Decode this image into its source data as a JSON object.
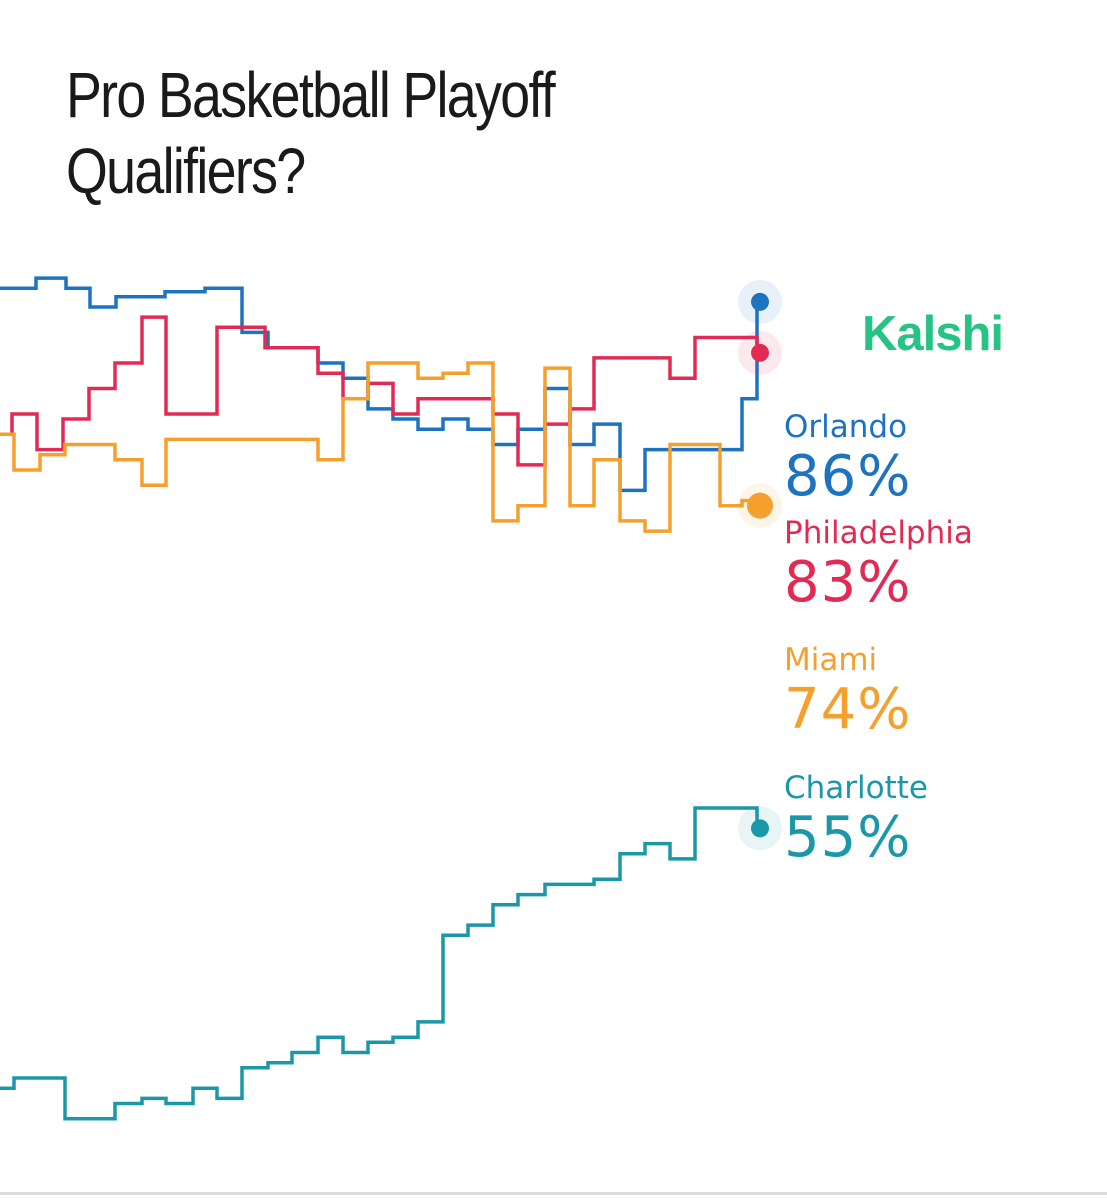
{
  "title": "Pro Basketball Playoff Qualifiers?",
  "title_line1": "Pro Basketball Playoff",
  "title_line2": "Qualifiers?",
  "brand": {
    "name": "Kalshi",
    "color": "#27c384"
  },
  "chart_data": {
    "type": "line",
    "title": "Pro Basketball Playoff Qualifiers?",
    "xlabel": "",
    "ylabel": "",
    "ylim": [
      35,
      94
    ],
    "grid": false,
    "legend": "right",
    "series": [
      {
        "name": "Orlando",
        "label": "86%",
        "color": "#1e73c0",
        "current": 86,
        "values": [
          [
            0,
            86.8
          ],
          [
            36,
            86.8
          ],
          [
            36,
            87.4
          ],
          [
            66,
            87.4
          ],
          [
            66,
            86.8
          ],
          [
            90,
            86.8
          ],
          [
            90,
            85.7
          ],
          [
            116,
            85.7
          ],
          [
            116,
            86.3
          ],
          [
            165,
            86.3
          ],
          [
            165,
            86.6
          ],
          [
            205,
            86.6
          ],
          [
            205,
            86.8
          ],
          [
            242,
            86.8
          ],
          [
            242,
            84.2
          ],
          [
            268,
            84.2
          ],
          [
            268,
            83.3
          ],
          [
            318,
            83.3
          ],
          [
            318,
            82.4
          ],
          [
            343,
            82.4
          ],
          [
            343,
            81.5
          ],
          [
            368,
            81.5
          ],
          [
            368,
            79.7
          ],
          [
            393,
            79.7
          ],
          [
            393,
            79.1
          ],
          [
            418,
            79.1
          ],
          [
            418,
            78.5
          ],
          [
            443,
            78.5
          ],
          [
            443,
            79.1
          ],
          [
            468,
            79.1
          ],
          [
            468,
            78.5
          ],
          [
            493,
            78.5
          ],
          [
            493,
            77.6
          ],
          [
            518,
            77.6
          ],
          [
            518,
            78.5
          ],
          [
            545,
            78.5
          ],
          [
            545,
            80.9
          ],
          [
            570,
            80.9
          ],
          [
            570,
            77.6
          ],
          [
            594,
            77.6
          ],
          [
            594,
            78.8
          ],
          [
            620,
            78.8
          ],
          [
            620,
            74.9
          ],
          [
            645,
            74.9
          ],
          [
            645,
            77.3
          ],
          [
            670,
            77.3
          ],
          [
            670,
            77.3
          ],
          [
            695,
            77.3
          ],
          [
            695,
            77.3
          ],
          [
            720,
            77.3
          ],
          [
            720,
            77.3
          ],
          [
            742,
            77.3
          ],
          [
            742,
            80.3
          ],
          [
            757,
            80.3
          ],
          [
            757,
            86.0
          ],
          [
            760,
            86.0
          ]
        ]
      },
      {
        "name": "Philadelphia",
        "label": "83%",
        "color": "#e12b54",
        "current": 83,
        "values": [
          [
            0,
            78.2
          ],
          [
            12,
            78.2
          ],
          [
            12,
            79.4
          ],
          [
            37,
            79.4
          ],
          [
            37,
            77.3
          ],
          [
            63,
            77.3
          ],
          [
            63,
            79.1
          ],
          [
            89,
            79.1
          ],
          [
            89,
            80.9
          ],
          [
            115,
            80.9
          ],
          [
            115,
            82.4
          ],
          [
            142,
            82.4
          ],
          [
            142,
            85.1
          ],
          [
            166,
            85.1
          ],
          [
            166,
            79.4
          ],
          [
            193,
            79.4
          ],
          [
            193,
            79.4
          ],
          [
            217,
            79.4
          ],
          [
            217,
            84.5
          ],
          [
            265,
            84.5
          ],
          [
            265,
            83.3
          ],
          [
            292,
            83.3
          ],
          [
            292,
            83.3
          ],
          [
            318,
            83.3
          ],
          [
            318,
            81.8
          ],
          [
            343,
            81.8
          ],
          [
            343,
            80.3
          ],
          [
            368,
            80.3
          ],
          [
            368,
            81.2
          ],
          [
            393,
            81.2
          ],
          [
            393,
            79.4
          ],
          [
            418,
            79.4
          ],
          [
            418,
            80.3
          ],
          [
            443,
            80.3
          ],
          [
            443,
            80.3
          ],
          [
            468,
            80.3
          ],
          [
            468,
            80.3
          ],
          [
            493,
            80.3
          ],
          [
            493,
            79.4
          ],
          [
            518,
            79.4
          ],
          [
            518,
            76.4
          ],
          [
            545,
            76.4
          ],
          [
            545,
            78.8
          ],
          [
            570,
            78.8
          ],
          [
            570,
            79.7
          ],
          [
            594,
            79.7
          ],
          [
            594,
            82.7
          ],
          [
            645,
            82.7
          ],
          [
            645,
            82.7
          ],
          [
            670,
            82.7
          ],
          [
            670,
            81.5
          ],
          [
            695,
            81.5
          ],
          [
            695,
            83.9
          ],
          [
            757,
            83.9
          ],
          [
            757,
            83.0
          ],
          [
            760,
            83.0
          ]
        ]
      },
      {
        "name": "Miami",
        "label": "74%",
        "color": "#f5a02c",
        "current": 74,
        "values": [
          [
            0,
            78.2
          ],
          [
            14,
            78.2
          ],
          [
            14,
            76.1
          ],
          [
            40,
            76.1
          ],
          [
            40,
            77.0
          ],
          [
            65,
            77.0
          ],
          [
            65,
            77.6
          ],
          [
            115,
            77.6
          ],
          [
            115,
            76.7
          ],
          [
            142,
            76.7
          ],
          [
            142,
            75.2
          ],
          [
            166,
            75.2
          ],
          [
            166,
            77.9
          ],
          [
            318,
            77.9
          ],
          [
            318,
            76.7
          ],
          [
            343,
            76.7
          ],
          [
            343,
            80.3
          ],
          [
            368,
            80.3
          ],
          [
            368,
            82.4
          ],
          [
            418,
            82.4
          ],
          [
            418,
            81.5
          ],
          [
            443,
            81.5
          ],
          [
            443,
            81.8
          ],
          [
            468,
            81.8
          ],
          [
            468,
            82.4
          ],
          [
            493,
            82.4
          ],
          [
            493,
            73.1
          ],
          [
            518,
            73.1
          ],
          [
            518,
            74.0
          ],
          [
            545,
            74.0
          ],
          [
            545,
            82.1
          ],
          [
            570,
            82.1
          ],
          [
            570,
            74.0
          ],
          [
            594,
            74.0
          ],
          [
            594,
            76.7
          ],
          [
            620,
            76.7
          ],
          [
            620,
            73.1
          ],
          [
            645,
            73.1
          ],
          [
            645,
            72.5
          ],
          [
            670,
            72.5
          ],
          [
            670,
            77.6
          ],
          [
            720,
            77.6
          ],
          [
            720,
            74.0
          ],
          [
            742,
            74.0
          ],
          [
            742,
            74.3
          ],
          [
            757,
            74.3
          ],
          [
            757,
            74.0
          ],
          [
            760,
            74.0
          ]
        ]
      },
      {
        "name": "Charlotte",
        "label": "55%",
        "color": "#1b98a8",
        "current": 55,
        "values": [
          [
            0,
            39.7
          ],
          [
            14,
            39.7
          ],
          [
            14,
            40.3
          ],
          [
            40,
            40.3
          ],
          [
            40,
            40.3
          ],
          [
            65,
            40.3
          ],
          [
            65,
            37.9
          ],
          [
            115,
            37.9
          ],
          [
            115,
            38.8
          ],
          [
            142,
            38.8
          ],
          [
            142,
            39.1
          ],
          [
            166,
            39.1
          ],
          [
            166,
            38.8
          ],
          [
            193,
            38.8
          ],
          [
            193,
            39.7
          ],
          [
            217,
            39.7
          ],
          [
            217,
            39.1
          ],
          [
            242,
            39.1
          ],
          [
            242,
            40.9
          ],
          [
            268,
            40.9
          ],
          [
            268,
            41.2
          ],
          [
            292,
            41.2
          ],
          [
            292,
            41.8
          ],
          [
            318,
            41.8
          ],
          [
            318,
            42.7
          ],
          [
            343,
            42.7
          ],
          [
            343,
            41.8
          ],
          [
            368,
            41.8
          ],
          [
            368,
            42.4
          ],
          [
            393,
            42.4
          ],
          [
            393,
            42.7
          ],
          [
            418,
            42.7
          ],
          [
            418,
            43.6
          ],
          [
            443,
            43.6
          ],
          [
            443,
            48.7
          ],
          [
            468,
            48.7
          ],
          [
            468,
            49.3
          ],
          [
            493,
            49.3
          ],
          [
            493,
            50.5
          ],
          [
            518,
            50.5
          ],
          [
            518,
            51.1
          ],
          [
            545,
            51.1
          ],
          [
            545,
            51.7
          ],
          [
            570,
            51.7
          ],
          [
            570,
            51.7
          ],
          [
            594,
            51.7
          ],
          [
            594,
            52.0
          ],
          [
            620,
            52.0
          ],
          [
            620,
            53.5
          ],
          [
            645,
            53.5
          ],
          [
            645,
            54.1
          ],
          [
            670,
            54.1
          ],
          [
            670,
            53.2
          ],
          [
            695,
            53.2
          ],
          [
            695,
            56.2
          ],
          [
            720,
            56.2
          ],
          [
            720,
            56.2
          ],
          [
            742,
            56.2
          ],
          [
            742,
            56.2
          ],
          [
            757,
            56.2
          ],
          [
            757,
            55.0
          ],
          [
            760,
            55.0
          ]
        ]
      }
    ]
  }
}
